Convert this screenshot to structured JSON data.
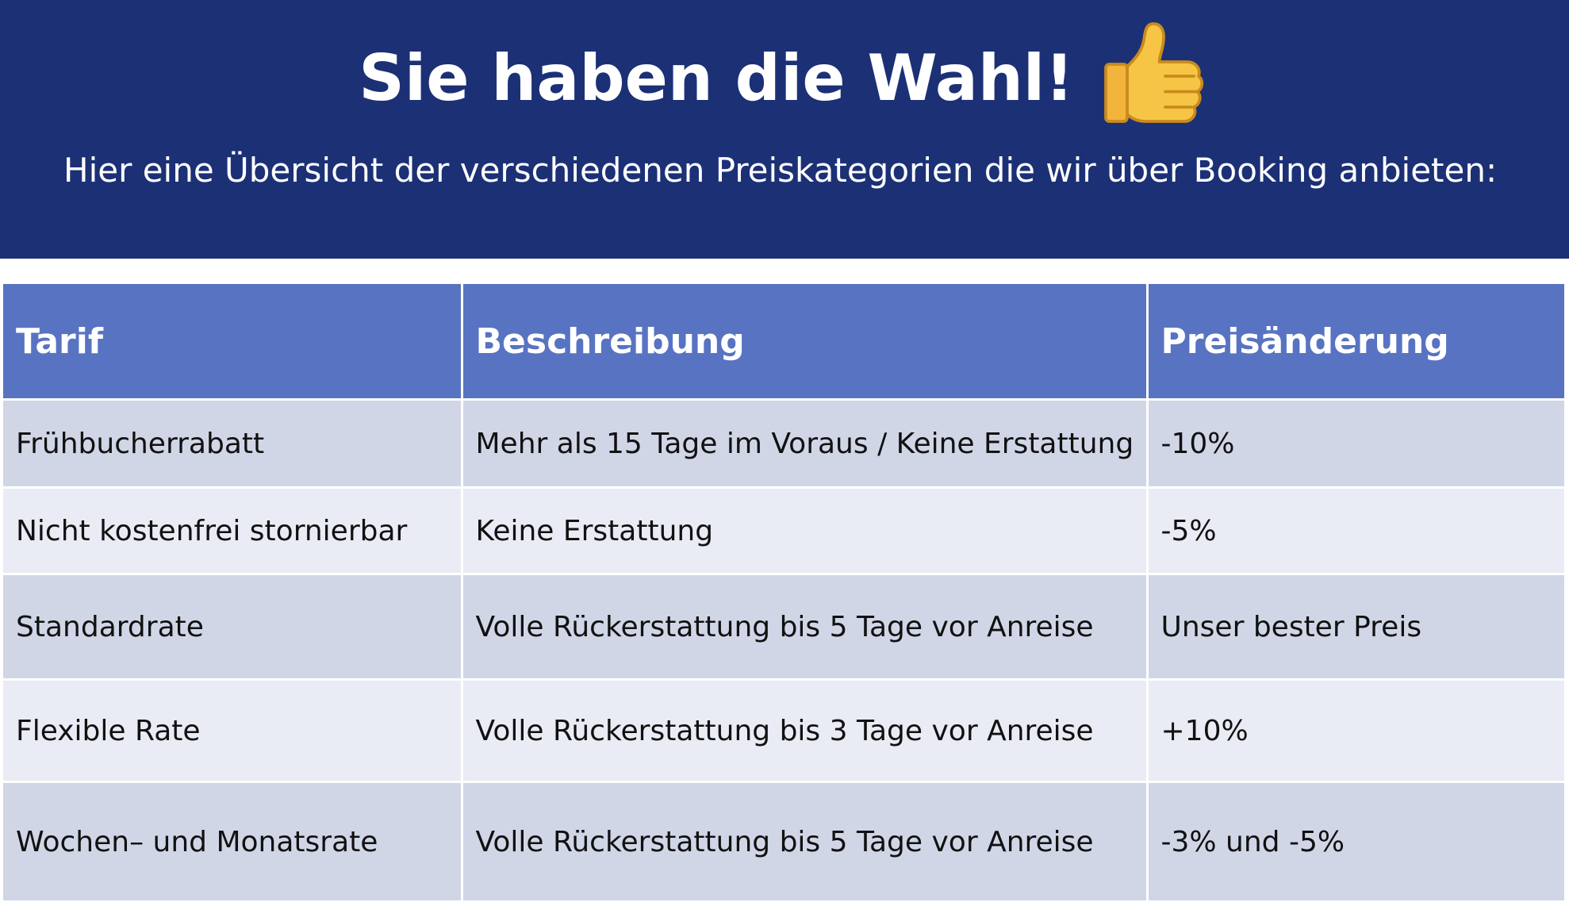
{
  "header": {
    "title": "Sie haben die Wahl!",
    "thumb_icon": "thumbs-up-icon",
    "subtitle": "Hier eine Übersicht der verschiedenen Preiskategorien die wir über Booking anbieten:",
    "background_color": "#1c3076"
  },
  "table": {
    "header_color": "#5873c2",
    "columns": [
      "Tarif",
      "Beschreibung",
      "Preisänderung"
    ],
    "rows": [
      {
        "tarif": "Frühbucherrabatt",
        "beschreibung": "Mehr als 15 Tage im Voraus / Keine Erstattung",
        "preis": "-10%"
      },
      {
        "tarif": "Nicht kostenfrei stornierbar",
        "beschreibung": "Keine Erstattung",
        "preis": "-5%"
      },
      {
        "tarif": "Standardrate",
        "beschreibung": "Volle Rückerstattung bis 5 Tage vor Anreise",
        "preis": "Unser bester Preis"
      },
      {
        "tarif": "Flexible Rate",
        "beschreibung": "Volle Rückerstattung bis 3 Tage vor Anreise",
        "preis": "+10%"
      },
      {
        "tarif": "Wochen– und Monatsrate",
        "beschreibung": "Volle Rückerstattung bis 5 Tage vor Anreise",
        "preis": "-3% und -5%"
      }
    ]
  }
}
